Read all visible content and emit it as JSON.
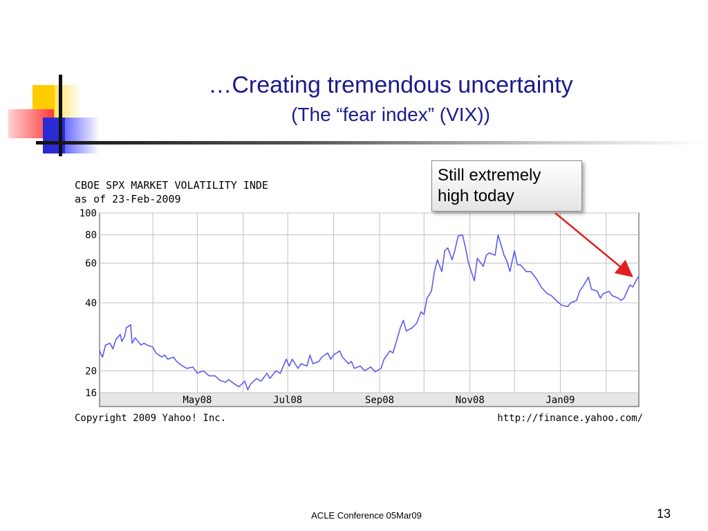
{
  "slide": {
    "title": "…Creating tremendous uncertainty",
    "subtitle": "(The “fear index” (VIX))",
    "callout": "Still extremely high today",
    "footer": "ACLE Conference 05Mar09",
    "page_number": "13"
  },
  "colors": {
    "title": "#1a1a8c",
    "series": "#5b5bf0",
    "arrow": "#e02020",
    "grid": "#c0c0c0"
  },
  "chart_data": {
    "type": "line",
    "title": "CBOE SPX MARKET VOLATILITY INDE",
    "subtitle": "as of 23-Feb-2009",
    "copyright": "Copyright 2009 Yahoo! Inc.",
    "source_url": "http://finance.yahoo.com/",
    "y_scale": "log",
    "ylim": [
      16,
      100
    ],
    "y_ticks": [
      {
        "value": 100,
        "label": "100"
      },
      {
        "value": 80,
        "label": "80"
      },
      {
        "value": 60,
        "label": "60"
      },
      {
        "value": 40,
        "label": "40"
      },
      {
        "value": 20,
        "label": "20"
      },
      {
        "value": 16,
        "label": "16"
      }
    ],
    "x_range": [
      "2008-02-25",
      "2009-02-23"
    ],
    "x_ticks": [
      {
        "date": "2008-05-01",
        "label": "May08"
      },
      {
        "date": "2008-07-01",
        "label": "Jul08"
      },
      {
        "date": "2008-09-01",
        "label": "Sep08"
      },
      {
        "date": "2008-11-01",
        "label": "Nov08"
      },
      {
        "date": "2009-01-01",
        "label": "Jan09"
      }
    ],
    "x_grid_extra": [
      "2008-04-01",
      "2008-06-01",
      "2008-08-01",
      "2008-10-01",
      "2008-12-01",
      "2009-02-01"
    ],
    "grid": true,
    "series": [
      {
        "name": "VIX",
        "points": [
          [
            "2008-02-25",
            24.5
          ],
          [
            "2008-02-27",
            23.0
          ],
          [
            "2008-02-29",
            26.0
          ],
          [
            "2008-03-03",
            26.5
          ],
          [
            "2008-03-05",
            25.0
          ],
          [
            "2008-03-07",
            27.5
          ],
          [
            "2008-03-10",
            29.0
          ],
          [
            "2008-03-11",
            27.0
          ],
          [
            "2008-03-13",
            28.5
          ],
          [
            "2008-03-14",
            31.0
          ],
          [
            "2008-03-17",
            32.0
          ],
          [
            "2008-03-18",
            26.5
          ],
          [
            "2008-03-20",
            28.0
          ],
          [
            "2008-03-24",
            26.0
          ],
          [
            "2008-03-26",
            26.5
          ],
          [
            "2008-03-28",
            26.0
          ],
          [
            "2008-04-01",
            25.5
          ],
          [
            "2008-04-03",
            24.0
          ],
          [
            "2008-04-07",
            23.0
          ],
          [
            "2008-04-09",
            23.5
          ],
          [
            "2008-04-11",
            22.5
          ],
          [
            "2008-04-15",
            23.0
          ],
          [
            "2008-04-17",
            22.0
          ],
          [
            "2008-04-21",
            21.0
          ],
          [
            "2008-04-24",
            20.5
          ],
          [
            "2008-04-28",
            20.8
          ],
          [
            "2008-05-01",
            19.5
          ],
          [
            "2008-05-05",
            20.0
          ],
          [
            "2008-05-09",
            19.0
          ],
          [
            "2008-05-13",
            19.0
          ],
          [
            "2008-05-16",
            18.2
          ],
          [
            "2008-05-20",
            17.8
          ],
          [
            "2008-05-22",
            18.3
          ],
          [
            "2008-05-26",
            17.5
          ],
          [
            "2008-05-29",
            17.0
          ],
          [
            "2008-06-02",
            18.0
          ],
          [
            "2008-06-04",
            16.5
          ],
          [
            "2008-06-06",
            17.5
          ],
          [
            "2008-06-10",
            18.5
          ],
          [
            "2008-06-13",
            18.0
          ],
          [
            "2008-06-17",
            19.5
          ],
          [
            "2008-06-19",
            18.5
          ],
          [
            "2008-06-23",
            20.0
          ],
          [
            "2008-06-26",
            19.5
          ],
          [
            "2008-06-30",
            22.5
          ],
          [
            "2008-07-02",
            21.0
          ],
          [
            "2008-07-04",
            22.5
          ],
          [
            "2008-07-08",
            20.5
          ],
          [
            "2008-07-10",
            21.5
          ],
          [
            "2008-07-14",
            21.0
          ],
          [
            "2008-07-16",
            23.5
          ],
          [
            "2008-07-18",
            21.5
          ],
          [
            "2008-07-22",
            22.0
          ],
          [
            "2008-07-24",
            23.0
          ],
          [
            "2008-07-28",
            24.0
          ],
          [
            "2008-07-30",
            22.5
          ],
          [
            "2008-08-01",
            23.5
          ],
          [
            "2008-08-05",
            24.5
          ],
          [
            "2008-08-07",
            23.0
          ],
          [
            "2008-08-11",
            21.5
          ],
          [
            "2008-08-13",
            22.0
          ],
          [
            "2008-08-15",
            20.5
          ],
          [
            "2008-08-19",
            21.0
          ],
          [
            "2008-08-22",
            20.0
          ],
          [
            "2008-08-26",
            20.8
          ],
          [
            "2008-08-29",
            19.8
          ],
          [
            "2008-09-02",
            20.5
          ],
          [
            "2008-09-04",
            22.5
          ],
          [
            "2008-09-08",
            24.5
          ],
          [
            "2008-09-10",
            24.0
          ],
          [
            "2008-09-12",
            26.5
          ],
          [
            "2008-09-15",
            31.0
          ],
          [
            "2008-09-17",
            33.5
          ],
          [
            "2008-09-19",
            30.0
          ],
          [
            "2008-09-23",
            31.0
          ],
          [
            "2008-09-26",
            32.5
          ],
          [
            "2008-09-29",
            36.5
          ],
          [
            "2008-10-01",
            35.5
          ],
          [
            "2008-10-03",
            42.0
          ],
          [
            "2008-10-06",
            45.0
          ],
          [
            "2008-10-08",
            55.0
          ],
          [
            "2008-10-10",
            62.0
          ],
          [
            "2008-10-13",
            55.0
          ],
          [
            "2008-10-15",
            68.0
          ],
          [
            "2008-10-17",
            70.0
          ],
          [
            "2008-10-20",
            62.0
          ],
          [
            "2008-10-22",
            69.0
          ],
          [
            "2008-10-24",
            79.0
          ],
          [
            "2008-10-27",
            80.0
          ],
          [
            "2008-10-29",
            70.0
          ],
          [
            "2008-10-31",
            60.0
          ],
          [
            "2008-11-04",
            50.0
          ],
          [
            "2008-11-06",
            63.0
          ],
          [
            "2008-11-10",
            58.0
          ],
          [
            "2008-11-12",
            65.0
          ],
          [
            "2008-11-14",
            66.5
          ],
          [
            "2008-11-18",
            65.0
          ],
          [
            "2008-11-20",
            80.0
          ],
          [
            "2008-11-24",
            65.0
          ],
          [
            "2008-11-26",
            61.0
          ],
          [
            "2008-11-28",
            55.0
          ],
          [
            "2008-12-01",
            68.0
          ],
          [
            "2008-12-03",
            59.0
          ],
          [
            "2008-12-05",
            59.0
          ],
          [
            "2008-12-09",
            55.0
          ],
          [
            "2008-12-12",
            55.0
          ],
          [
            "2008-12-16",
            51.0
          ],
          [
            "2008-12-19",
            47.0
          ],
          [
            "2008-12-23",
            44.0
          ],
          [
            "2008-12-26",
            43.0
          ],
          [
            "2008-12-30",
            40.5
          ],
          [
            "2009-01-02",
            39.0
          ],
          [
            "2009-01-06",
            38.5
          ],
          [
            "2009-01-08",
            40.0
          ],
          [
            "2009-01-12",
            41.0
          ],
          [
            "2009-01-14",
            45.0
          ],
          [
            "2009-01-16",
            47.0
          ],
          [
            "2009-01-20",
            52.0
          ],
          [
            "2009-01-22",
            46.0
          ],
          [
            "2009-01-26",
            45.0
          ],
          [
            "2009-01-28",
            42.0
          ],
          [
            "2009-01-30",
            44.0
          ],
          [
            "2009-02-03",
            45.0
          ],
          [
            "2009-02-05",
            43.0
          ],
          [
            "2009-02-09",
            42.0
          ],
          [
            "2009-02-11",
            41.0
          ],
          [
            "2009-02-13",
            42.0
          ],
          [
            "2009-02-17",
            48.0
          ],
          [
            "2009-02-19",
            47.0
          ],
          [
            "2009-02-21",
            50.0
          ],
          [
            "2009-02-23",
            52.6
          ]
        ]
      }
    ]
  }
}
